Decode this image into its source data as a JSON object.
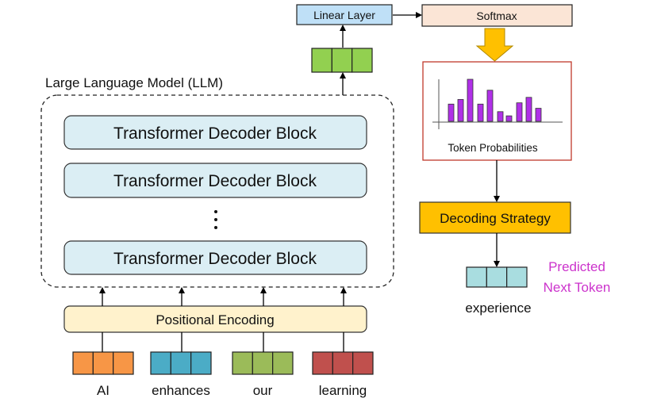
{
  "llm": {
    "title": "Large Language Model (LLM)",
    "blocks": [
      "Transformer Decoder Block",
      "Transformer Decoder Block",
      "Transformer Decoder Block"
    ],
    "ellipsis": "⋮"
  },
  "positional_encoding": "Positional Encoding",
  "tokens": [
    {
      "label": "AI",
      "color": "#f79646"
    },
    {
      "label": "enhances",
      "color": "#4bacc6"
    },
    {
      "label": "our",
      "color": "#9bbb59"
    },
    {
      "label": "learning",
      "color": "#c0504d"
    }
  ],
  "hidden_vector_color": "#92d050",
  "linear_layer": "Linear Layer",
  "softmax": "Softmax",
  "token_probabilities": {
    "label": "Token Probabilities",
    "relative_values": [
      0.41,
      0.52,
      1.0,
      0.41,
      0.74,
      0.23,
      0.13,
      0.44,
      0.57,
      0.31
    ],
    "bar_color": "#b030e8"
  },
  "decoding_strategy": "Decoding Strategy",
  "predicted": {
    "label_line1": "Predicted",
    "label_line2": "Next Token",
    "label_color": "#cc33cc",
    "token": "experience",
    "vector_color": "#a9dde0"
  },
  "colors": {
    "transformer_block": "#dbeef4",
    "positional_encoding": "#fff2cc",
    "linear_layer": "#bfe0f7",
    "softmax": "#fbe5d6",
    "decoding_strategy": "#ffc000",
    "prob_border": "#c0392b"
  }
}
